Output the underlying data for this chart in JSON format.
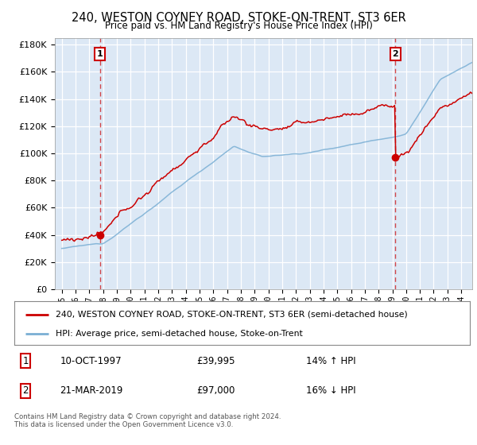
{
  "title": "240, WESTON COYNEY ROAD, STOKE-ON-TRENT, ST3 6ER",
  "subtitle": "Price paid vs. HM Land Registry's House Price Index (HPI)",
  "yticks": [
    0,
    20000,
    40000,
    60000,
    80000,
    100000,
    120000,
    140000,
    160000,
    180000
  ],
  "legend_line1": "240, WESTON COYNEY ROAD, STOKE-ON-TRENT, ST3 6ER (semi-detached house)",
  "legend_line2": "HPI: Average price, semi-detached house, Stoke-on-Trent",
  "annotation1_date": "10-OCT-1997",
  "annotation1_price": "£39,995",
  "annotation1_hpi": "14% ↑ HPI",
  "annotation2_date": "21-MAR-2019",
  "annotation2_price": "£97,000",
  "annotation2_hpi": "16% ↓ HPI",
  "footnote": "Contains HM Land Registry data © Crown copyright and database right 2024.\nThis data is licensed under the Open Government Licence v3.0.",
  "property_color": "#cc0000",
  "hpi_color": "#7aafd4",
  "sale1_year": 1997.78,
  "sale1_price": 39995,
  "sale2_year": 2019.22,
  "sale2_price": 97000,
  "background_color": "#dce8f5"
}
